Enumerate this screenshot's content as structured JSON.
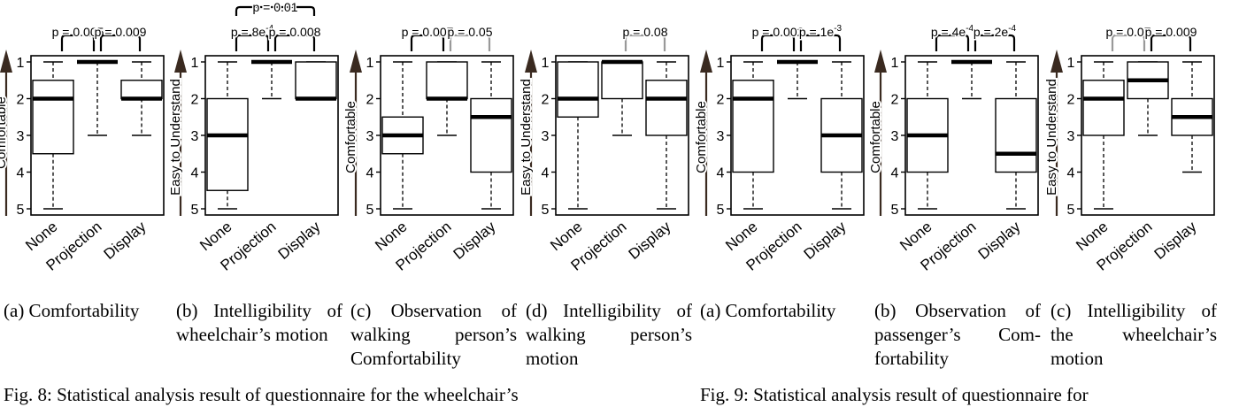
{
  "chart_data": [
    {
      "type": "box",
      "ylabel": "Comfortable",
      "categories": [
        "None",
        "Projection",
        "Display"
      ],
      "y_ticks": [
        "1",
        "2",
        "3",
        "4",
        "5"
      ],
      "ylim": [
        1,
        5
      ],
      "y_inverted": true,
      "boxes": [
        {
          "whisker_low": 1,
          "q1": 1.5,
          "median": 2,
          "q3": 3.5,
          "whisker_high": 5
        },
        {
          "whisker_low": 1,
          "q1": 1,
          "median": 1,
          "q3": 1,
          "whisker_high": 3
        },
        {
          "whisker_low": 1,
          "q1": 1.5,
          "median": 2,
          "q3": 2,
          "whisker_high": 3
        }
      ],
      "brackets": [
        {
          "from": 0,
          "to": 1,
          "label": "p = 0.005",
          "color": "#000000",
          "level": 1
        },
        {
          "from": 1,
          "to": 2,
          "label": "p = 0.009",
          "color": "#000000",
          "level": 1
        }
      ]
    },
    {
      "type": "box",
      "ylabel": "Easy to Understand",
      "categories": [
        "None",
        "Projection",
        "Display"
      ],
      "y_ticks": [
        "1",
        "2",
        "3",
        "4",
        "5"
      ],
      "ylim": [
        1,
        5
      ],
      "y_inverted": true,
      "boxes": [
        {
          "whisker_low": 1,
          "q1": 2,
          "median": 3,
          "q3": 4.5,
          "whisker_high": 5
        },
        {
          "whisker_low": 1,
          "q1": 1,
          "median": 1,
          "q3": 1,
          "whisker_high": 2
        },
        {
          "whisker_low": 1,
          "q1": 1,
          "median": 2,
          "q3": 2,
          "whisker_high": 2
        }
      ],
      "brackets": [
        {
          "from": 0,
          "to": 1,
          "label": "p = 8e",
          "sup": "-4",
          "color": "#000000",
          "level": 1
        },
        {
          "from": 1,
          "to": 2,
          "label": "p = 0.008",
          "color": "#000000",
          "level": 1
        },
        {
          "from": 0,
          "to": 2,
          "label": "p = 0.01",
          "color": "#000000",
          "level": 2
        }
      ]
    },
    {
      "type": "box",
      "ylabel": "Comfortable",
      "categories": [
        "None",
        "Projection",
        "Display"
      ],
      "y_ticks": [
        "1",
        "2",
        "3",
        "4",
        "5"
      ],
      "ylim": [
        1,
        5
      ],
      "y_inverted": true,
      "boxes": [
        {
          "whisker_low": 1,
          "q1": 2.5,
          "median": 3,
          "q3": 3.5,
          "whisker_high": 5
        },
        {
          "whisker_low": 1,
          "q1": 1,
          "median": 2,
          "q3": 2,
          "whisker_high": 3
        },
        {
          "whisker_low": 1,
          "q1": 2,
          "median": 2.5,
          "q3": 4,
          "whisker_high": 5
        }
      ],
      "brackets": [
        {
          "from": 0,
          "to": 1,
          "label": "p = 0.007",
          "color": "#000000",
          "level": 1
        },
        {
          "from": 1,
          "to": 2,
          "label": "p = 0.05",
          "color": "#999999",
          "level": 1
        }
      ]
    },
    {
      "type": "box",
      "ylabel": "Easy to Understand",
      "categories": [
        "None",
        "Projection",
        "Display"
      ],
      "y_ticks": [
        "1",
        "2",
        "3",
        "4",
        "5"
      ],
      "ylim": [
        1,
        5
      ],
      "y_inverted": true,
      "boxes": [
        {
          "whisker_low": 1,
          "q1": 1,
          "median": 2,
          "q3": 2.5,
          "whisker_high": 5
        },
        {
          "whisker_low": 1,
          "q1": 1,
          "median": 1,
          "q3": 2,
          "whisker_high": 3
        },
        {
          "whisker_low": 1,
          "q1": 1.5,
          "median": 2,
          "q3": 3,
          "whisker_high": 5
        }
      ],
      "brackets": [
        {
          "from": 1,
          "to": 2,
          "label": "p = 0.08",
          "color": "#999999",
          "level": 1
        }
      ]
    },
    {
      "type": "box",
      "ylabel": "Comfortable",
      "categories": [
        "None",
        "Projection",
        "Display"
      ],
      "y_ticks": [
        "1",
        "2",
        "3",
        "4",
        "5"
      ],
      "ylim": [
        1,
        5
      ],
      "y_inverted": true,
      "boxes": [
        {
          "whisker_low": 1,
          "q1": 1.5,
          "median": 2,
          "q3": 4,
          "whisker_high": 5
        },
        {
          "whisker_low": 1,
          "q1": 1,
          "median": 1,
          "q3": 1,
          "whisker_high": 2
        },
        {
          "whisker_low": 1,
          "q1": 2,
          "median": 3,
          "q3": 4,
          "whisker_high": 5
        }
      ],
      "brackets": [
        {
          "from": 0,
          "to": 1,
          "label": "p = 0.002",
          "color": "#000000",
          "level": 1
        },
        {
          "from": 1,
          "to": 2,
          "label": "p = 1e",
          "sup": "-3",
          "color": "#000000",
          "level": 1
        }
      ]
    },
    {
      "type": "box",
      "ylabel": "Comfortable",
      "categories": [
        "None",
        "Projection",
        "Display"
      ],
      "y_ticks": [
        "1",
        "2",
        "3",
        "4",
        "5"
      ],
      "ylim": [
        1,
        5
      ],
      "y_inverted": true,
      "boxes": [
        {
          "whisker_low": 1,
          "q1": 2,
          "median": 3,
          "q3": 4,
          "whisker_high": 5
        },
        {
          "whisker_low": 1,
          "q1": 1,
          "median": 1,
          "q3": 1,
          "whisker_high": 2
        },
        {
          "whisker_low": 1,
          "q1": 2,
          "median": 3.5,
          "q3": 4,
          "whisker_high": 5
        }
      ],
      "brackets": [
        {
          "from": 0,
          "to": 1,
          "label": "p = 4e",
          "sup": "-4",
          "color": "#000000",
          "level": 1
        },
        {
          "from": 1,
          "to": 2,
          "label": "p = 2e",
          "sup": "-4",
          "color": "#000000",
          "level": 1
        }
      ]
    },
    {
      "type": "box",
      "ylabel": "Easy to Understand",
      "categories": [
        "None",
        "Projection",
        "Display"
      ],
      "y_ticks": [
        "1",
        "2",
        "3",
        "4",
        "5"
      ],
      "ylim": [
        1,
        5
      ],
      "y_inverted": true,
      "boxes": [
        {
          "whisker_low": 1,
          "q1": 1.5,
          "median": 2,
          "q3": 3,
          "whisker_high": 5
        },
        {
          "whisker_low": 1,
          "q1": 1,
          "median": 1.5,
          "q3": 2,
          "whisker_high": 3
        },
        {
          "whisker_low": 1,
          "q1": 2,
          "median": 2.5,
          "q3": 3,
          "whisker_high": 4
        }
      ],
      "brackets": [
        {
          "from": 0,
          "to": 1,
          "label": "p = 0.07",
          "color": "#999999",
          "level": 1
        },
        {
          "from": 1,
          "to": 2,
          "label": "p = 0.009",
          "color": "#000000",
          "level": 1
        }
      ]
    }
  ],
  "captions": [
    "(a) Comfortability",
    "(b) Intelligibility of wheelchair’s motion",
    "(c) Observation of walking person’s Comfortability",
    "(d) Intelligibility of walking person’s motion",
    "(a) Comfortability",
    "(b) Observation of passenger’s Com-fortability",
    "(c) Intelligibility of the wheelchair’s motion"
  ],
  "figure_captions": [
    "Fig. 8: Statistical analysis result of questionnaire for the wheelchair’s",
    "Fig. 9: Statistical analysis result of questionnaire for"
  ],
  "colors": {
    "axis": "#000000",
    "arrow": "#3a2a20",
    "significant": "#000000",
    "marginal": "#999999"
  }
}
